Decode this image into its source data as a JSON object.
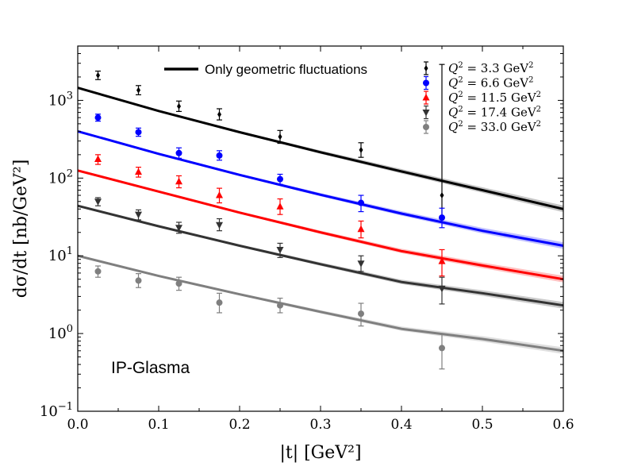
{
  "chart_data": {
    "type": "scatter",
    "title": "",
    "xlabel": "|t| [GeV²]",
    "ylabel": "dσ/dt [nb/GeV²]",
    "xlim": [
      0.0,
      0.6
    ],
    "ylim": [
      0.1,
      5000
    ],
    "yscale": "log",
    "x_ticks": [
      0.0,
      0.1,
      0.2,
      0.3,
      0.4,
      0.5,
      0.6
    ],
    "x_tick_labels": [
      "0.0",
      "0.1",
      "0.2",
      "0.3",
      "0.4",
      "0.5",
      "0.6"
    ],
    "y_ticks": [
      {
        "value": 0.1,
        "base": "10",
        "exp": "−1"
      },
      {
        "value": 1,
        "base": "10",
        "exp": "0"
      },
      {
        "value": 10,
        "base": "10",
        "exp": "1"
      },
      {
        "value": 100,
        "base": "10",
        "exp": "2"
      },
      {
        "value": 1000,
        "base": "10",
        "exp": "3"
      }
    ],
    "annotation": "IP-Glasma",
    "model_legend": "Only geometric fluctuations",
    "series": [
      {
        "name": "Q² = 3.3 GeV²",
        "q2": "3.3",
        "color": "#000000",
        "line_color": "#000000",
        "band_color": "#b0b0b0",
        "marker": "diamond",
        "points": [
          {
            "x": 0.025,
            "y": 2100,
            "lo": 1850,
            "hi": 2380
          },
          {
            "x": 0.075,
            "y": 1350,
            "lo": 1180,
            "hi": 1550
          },
          {
            "x": 0.125,
            "y": 840,
            "lo": 720,
            "hi": 980
          },
          {
            "x": 0.175,
            "y": 660,
            "lo": 560,
            "hi": 780
          },
          {
            "x": 0.25,
            "y": 340,
            "lo": 280,
            "hi": 410
          },
          {
            "x": 0.35,
            "y": 230,
            "lo": 185,
            "hi": 285
          },
          {
            "x": 0.45,
            "y": 60,
            "lo": 30,
            "hi": 2900
          }
        ],
        "curve": [
          {
            "x": 0.0,
            "y": 1450
          },
          {
            "x": 0.1,
            "y": 730
          },
          {
            "x": 0.2,
            "y": 390
          },
          {
            "x": 0.3,
            "y": 215
          },
          {
            "x": 0.4,
            "y": 122
          },
          {
            "x": 0.5,
            "y": 70
          },
          {
            "x": 0.6,
            "y": 40
          }
        ]
      },
      {
        "name": "Q² = 6.6 GeV²",
        "q2": "6.6",
        "color": "#0000ff",
        "line_color": "#0000ff",
        "band_color": "#a9a9ff",
        "marker": "circle",
        "points": [
          {
            "x": 0.025,
            "y": 600,
            "lo": 540,
            "hi": 665
          },
          {
            "x": 0.075,
            "y": 390,
            "lo": 345,
            "hi": 440
          },
          {
            "x": 0.125,
            "y": 210,
            "lo": 180,
            "hi": 245
          },
          {
            "x": 0.175,
            "y": 195,
            "lo": 170,
            "hi": 225
          },
          {
            "x": 0.25,
            "y": 97,
            "lo": 83,
            "hi": 112
          },
          {
            "x": 0.35,
            "y": 48,
            "lo": 37,
            "hi": 60
          },
          {
            "x": 0.45,
            "y": 31,
            "lo": 23,
            "hi": 41
          }
        ],
        "curve": [
          {
            "x": 0.0,
            "y": 400
          },
          {
            "x": 0.1,
            "y": 205
          },
          {
            "x": 0.2,
            "y": 110
          },
          {
            "x": 0.3,
            "y": 61
          },
          {
            "x": 0.4,
            "y": 35
          },
          {
            "x": 0.5,
            "y": 21
          },
          {
            "x": 0.6,
            "y": 13.5
          }
        ]
      },
      {
        "name": "Q² = 11.5 GeV²",
        "q2": "11.5",
        "color": "#ff0000",
        "line_color": "#ff0000",
        "band_color": "#ffaaaa",
        "marker": "triangle-up",
        "points": [
          {
            "x": 0.025,
            "y": 175,
            "lo": 150,
            "hi": 200
          },
          {
            "x": 0.075,
            "y": 120,
            "lo": 103,
            "hi": 138
          },
          {
            "x": 0.125,
            "y": 90,
            "lo": 75,
            "hi": 107
          },
          {
            "x": 0.175,
            "y": 60,
            "lo": 48,
            "hi": 74
          },
          {
            "x": 0.25,
            "y": 43,
            "lo": 34,
            "hi": 54
          },
          {
            "x": 0.35,
            "y": 22,
            "lo": 17,
            "hi": 28
          },
          {
            "x": 0.45,
            "y": 8.5,
            "lo": 5.5,
            "hi": 12
          }
        ],
        "curve": [
          {
            "x": 0.0,
            "y": 125
          },
          {
            "x": 0.1,
            "y": 67
          },
          {
            "x": 0.2,
            "y": 36
          },
          {
            "x": 0.3,
            "y": 20
          },
          {
            "x": 0.4,
            "y": 11.5
          },
          {
            "x": 0.5,
            "y": 7.5
          },
          {
            "x": 0.6,
            "y": 5
          }
        ]
      },
      {
        "name": "Q² = 17.4 GeV²",
        "q2": "17.4",
        "color": "#333333",
        "line_color": "#333333",
        "band_color": "#b8b8b8",
        "marker": "triangle-down",
        "points": [
          {
            "x": 0.025,
            "y": 50,
            "lo": 44,
            "hi": 56
          },
          {
            "x": 0.075,
            "y": 34,
            "lo": 29,
            "hi": 39
          },
          {
            "x": 0.125,
            "y": 23,
            "lo": 19.5,
            "hi": 27
          },
          {
            "x": 0.175,
            "y": 25,
            "lo": 21,
            "hi": 30
          },
          {
            "x": 0.25,
            "y": 12,
            "lo": 9.5,
            "hi": 14.5
          },
          {
            "x": 0.35,
            "y": 8,
            "lo": 6.3,
            "hi": 10
          },
          {
            "x": 0.45,
            "y": 3.8,
            "lo": 2.4,
            "hi": 5.3
          }
        ],
        "curve": [
          {
            "x": 0.0,
            "y": 44
          },
          {
            "x": 0.1,
            "y": 24
          },
          {
            "x": 0.2,
            "y": 13.5
          },
          {
            "x": 0.3,
            "y": 7.8
          },
          {
            "x": 0.4,
            "y": 4.6
          },
          {
            "x": 0.5,
            "y": 3.3
          },
          {
            "x": 0.6,
            "y": 2.3
          }
        ]
      },
      {
        "name": "Q² = 33.0 GeV²",
        "q2": "33.0",
        "color": "#7f7f7f",
        "line_color": "#7f7f7f",
        "band_color": "#d4d4d4",
        "marker": "circle",
        "points": [
          {
            "x": 0.025,
            "y": 6.3,
            "lo": 5.3,
            "hi": 7.4
          },
          {
            "x": 0.075,
            "y": 4.8,
            "lo": 3.9,
            "hi": 5.9
          },
          {
            "x": 0.125,
            "y": 4.4,
            "lo": 3.6,
            "hi": 5.3
          },
          {
            "x": 0.175,
            "y": 2.5,
            "lo": 1.85,
            "hi": 3.3
          },
          {
            "x": 0.25,
            "y": 2.3,
            "lo": 1.85,
            "hi": 2.85
          },
          {
            "x": 0.35,
            "y": 1.8,
            "lo": 1.25,
            "hi": 2.45
          },
          {
            "x": 0.45,
            "y": 0.65,
            "lo": 0.35,
            "hi": 1.0
          }
        ],
        "curve": [
          {
            "x": 0.0,
            "y": 10
          },
          {
            "x": 0.1,
            "y": 5.5
          },
          {
            "x": 0.2,
            "y": 3.2
          },
          {
            "x": 0.3,
            "y": 1.9
          },
          {
            "x": 0.4,
            "y": 1.15
          },
          {
            "x": 0.5,
            "y": 0.85
          },
          {
            "x": 0.6,
            "y": 0.6
          }
        ]
      }
    ]
  }
}
